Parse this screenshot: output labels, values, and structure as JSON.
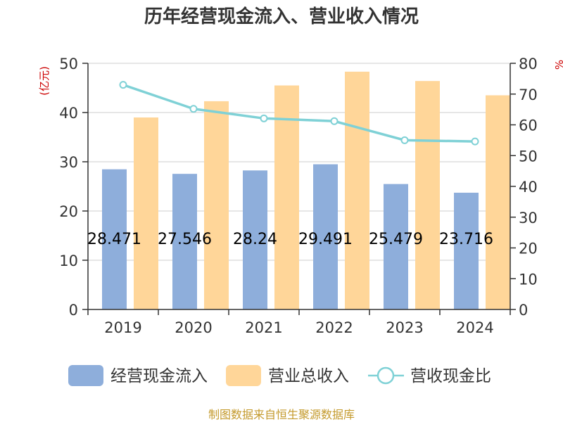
{
  "chart_data": {
    "type": "bar",
    "title": "历年经营现金流入、营业收入情况",
    "left_axis_unit": "(亿元)",
    "right_axis_unit": "%",
    "categories": [
      "2019",
      "2020",
      "2021",
      "2022",
      "2023",
      "2024"
    ],
    "ylim_left": [
      0,
      50
    ],
    "yticks_left": [
      "0",
      "10",
      "20",
      "30",
      "40",
      "50"
    ],
    "ylim_right": [
      0,
      80
    ],
    "yticks_right": [
      "0",
      "10",
      "20",
      "30",
      "40",
      "50",
      "60",
      "70",
      "80"
    ],
    "grid": true,
    "legend_position": "bottom",
    "series": [
      {
        "name": "经营现金流入",
        "kind": "bar",
        "axis": "left",
        "color": "#8eaedb",
        "values": [
          28.471,
          27.546,
          28.24,
          29.491,
          25.479,
          23.716
        ],
        "labels": [
          "28.471",
          "27.546",
          "28.24",
          "29.491",
          "25.479",
          "23.716"
        ]
      },
      {
        "name": "营业总收入",
        "kind": "bar",
        "axis": "left",
        "color": "#ffd699",
        "values": [
          39.0,
          42.3,
          45.5,
          48.3,
          46.4,
          43.5
        ]
      },
      {
        "name": "营收现金比",
        "kind": "line",
        "axis": "right",
        "color": "#7fd1d6",
        "values": [
          73.0,
          65.2,
          62.1,
          61.2,
          55.0,
          54.6
        ]
      }
    ]
  },
  "source": "制图数据来自恒生聚源数据库"
}
